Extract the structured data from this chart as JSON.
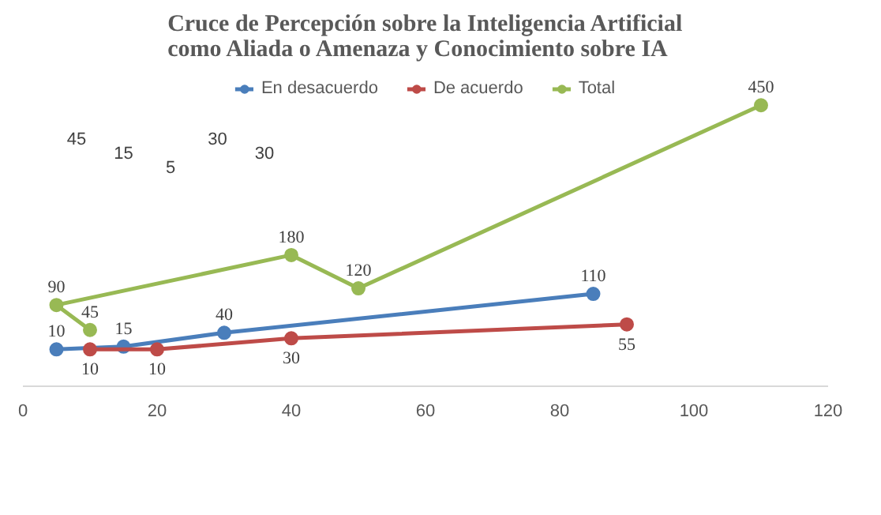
{
  "chart_data": {
    "type": "line",
    "title": "Cruce de Percepción sobre la Inteligencia Artificial\ncomo Aliada o Amenaza y Conocimiento sobre IA",
    "series": [
      {
        "name": "En desacuerdo",
        "color": "#4a7ebb",
        "x": [
          5,
          15,
          30,
          85
        ],
        "values": [
          10,
          15,
          40,
          110
        ]
      },
      {
        "name": "De acuerdo",
        "color": "#be4b48",
        "x": [
          10,
          20,
          40,
          90
        ],
        "values": [
          10,
          10,
          30,
          55
        ]
      },
      {
        "name": "Total",
        "color": "#98b954",
        "x": [
          10,
          5,
          40,
          50,
          110
        ],
        "values": [
          45,
          90,
          180,
          120,
          450
        ]
      }
    ],
    "annotations": [
      "45",
      "15",
      "5",
      "30",
      "30"
    ],
    "xlim": [
      0,
      120
    ],
    "xticks": [
      0,
      20,
      40,
      60,
      80,
      100,
      120
    ],
    "tick_labels": "x",
    "data_labels": true,
    "marker": "circle",
    "legend": "top center",
    "grid": false
  }
}
